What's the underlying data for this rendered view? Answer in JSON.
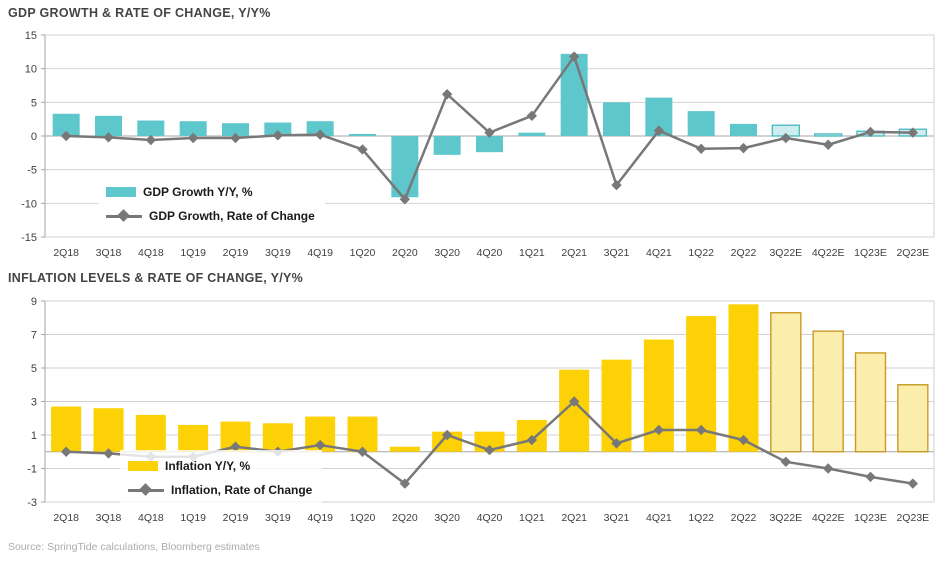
{
  "source": {
    "text": "Source: SpringTide calculations, Bloomberg estimates"
  },
  "chart_data": [
    {
      "type": "bar",
      "title": "GDP GROWTH & RATE OF CHANGE, Y/Y%",
      "categories": [
        "2Q18",
        "3Q18",
        "4Q18",
        "1Q19",
        "2Q19",
        "3Q19",
        "4Q19",
        "1Q20",
        "2Q20",
        "3Q20",
        "4Q20",
        "1Q21",
        "2Q21",
        "3Q21",
        "4Q21",
        "1Q22",
        "2Q22",
        "3Q22E",
        "4Q22E",
        "1Q23E",
        "2Q23E"
      ],
      "ylim": [
        -15,
        15
      ],
      "yticks": [
        15,
        10,
        5,
        0,
        -5,
        -10,
        -15
      ],
      "grid": "on",
      "legend_position": "inside-lower-left",
      "estimate_start_index": 17,
      "series": [
        {
          "name": "GDP Growth Y/Y, %",
          "type": "bar",
          "color": "#5EC7CC",
          "estimate_fill": "#CEEDEF",
          "estimate_stroke": "#4FBCC2",
          "values": [
            3.3,
            3.0,
            2.3,
            2.2,
            1.9,
            2.0,
            2.2,
            0.3,
            -9.1,
            -2.8,
            -2.4,
            0.5,
            12.2,
            5.0,
            5.7,
            3.7,
            1.8,
            1.6,
            0.3,
            0.7,
            1.0
          ]
        },
        {
          "name": "GDP Growth, Rate of Change",
          "type": "line",
          "color": "#787878",
          "values": [
            0.0,
            -0.2,
            -0.6,
            -0.3,
            -0.3,
            0.1,
            0.2,
            -2.0,
            -9.4,
            6.2,
            0.5,
            3.0,
            11.8,
            -7.3,
            0.8,
            -1.9,
            -1.8,
            -0.3,
            -1.3,
            0.6,
            0.5
          ]
        }
      ]
    },
    {
      "type": "bar",
      "title": "INFLATION LEVELS & RATE OF CHANGE, Y/Y%",
      "categories": [
        "2Q18",
        "3Q18",
        "4Q18",
        "1Q19",
        "2Q19",
        "3Q19",
        "4Q19",
        "1Q20",
        "2Q20",
        "3Q20",
        "4Q20",
        "1Q21",
        "2Q21",
        "3Q21",
        "4Q21",
        "1Q22",
        "2Q22",
        "3Q22E",
        "4Q22E",
        "1Q23E",
        "2Q23E"
      ],
      "ylim": [
        -3,
        9
      ],
      "yticks": [
        9,
        7,
        5,
        3,
        1,
        -1,
        -3
      ],
      "grid": "on",
      "legend_position": "inside-lower-left",
      "estimate_start_index": 17,
      "series": [
        {
          "name": "Inflation Y/Y, %",
          "type": "bar",
          "color": "#FCD106",
          "estimate_fill": "#FBEDAC",
          "estimate_stroke": "#C99B26",
          "values": [
            2.7,
            2.6,
            2.2,
            1.6,
            1.8,
            1.7,
            2.1,
            2.1,
            0.3,
            1.2,
            1.2,
            1.9,
            4.9,
            5.5,
            6.7,
            8.1,
            8.8,
            8.3,
            7.2,
            5.9,
            4.0
          ]
        },
        {
          "name": "Inflation, Rate of Change",
          "type": "line",
          "color": "#787878",
          "values": [
            0.0,
            -0.1,
            -0.3,
            -0.3,
            0.3,
            0.0,
            0.4,
            0.0,
            -1.9,
            1.0,
            0.1,
            0.7,
            3.0,
            0.5,
            1.3,
            1.3,
            0.7,
            -0.6,
            -1.0,
            -1.5,
            -1.9
          ]
        }
      ]
    }
  ],
  "colors": {
    "gridline": "#D2D2D2",
    "axis": "#A6A6A6",
    "tick_label": "#3F3F3F"
  }
}
